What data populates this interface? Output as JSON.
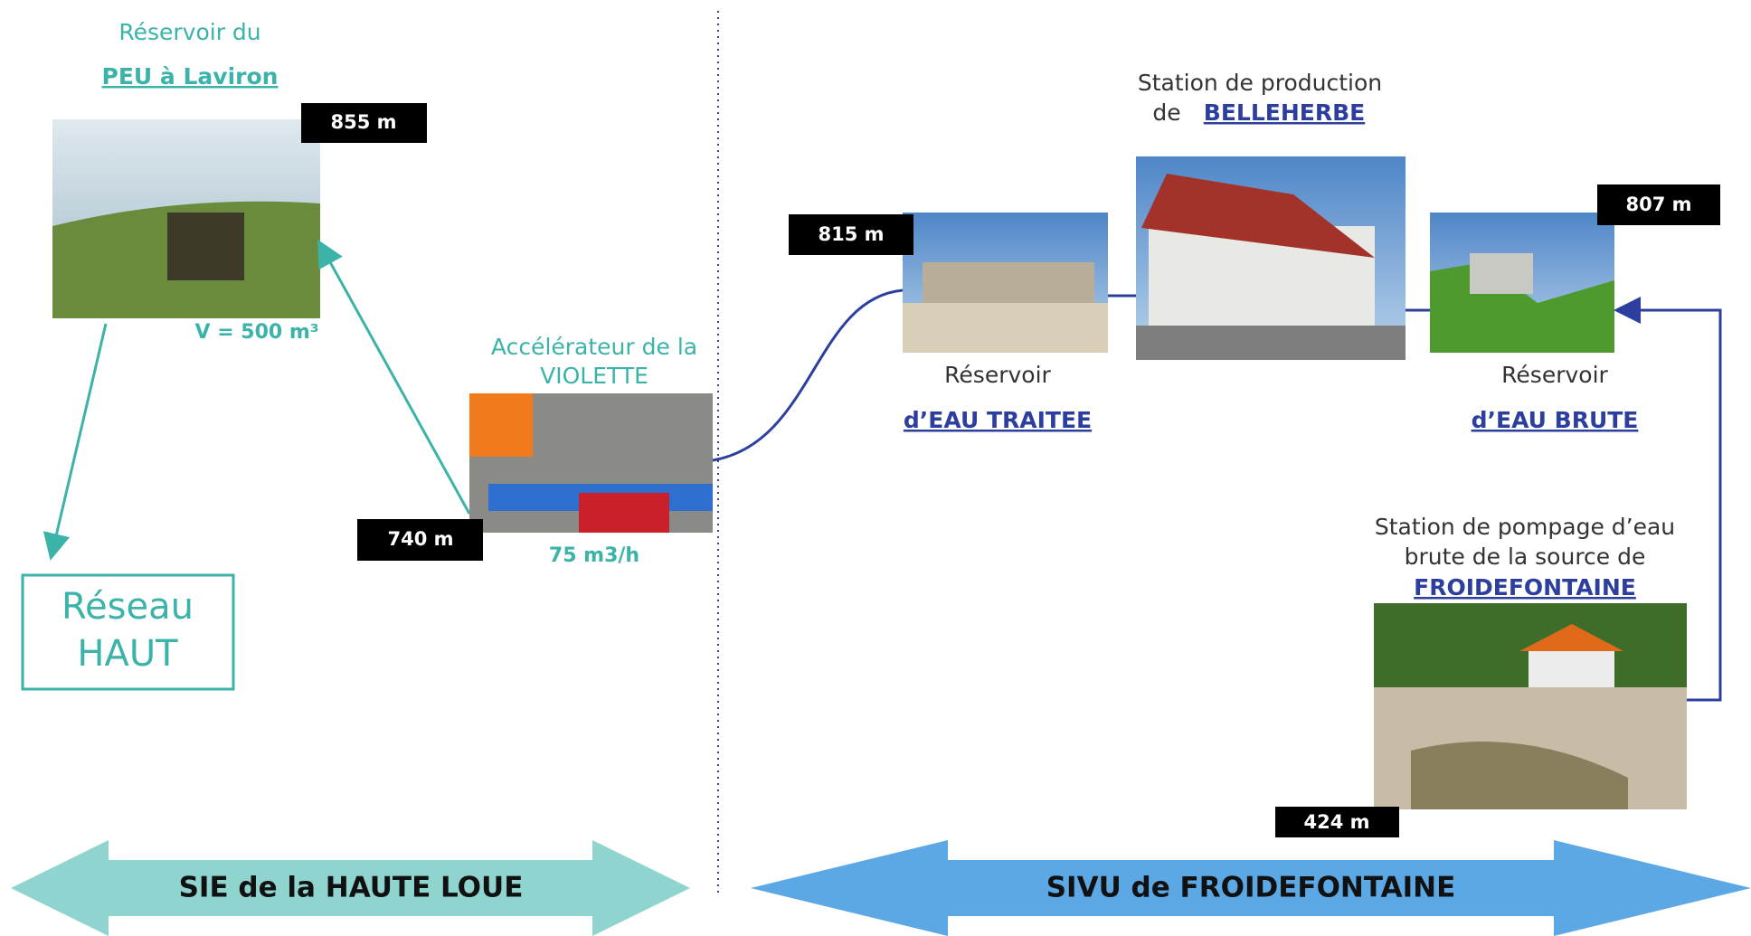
{
  "nodes": [
    {
      "title": "Réservoir du",
      "name": "PEU à Laviron",
      "altitude": "855 m",
      "note": "V = 500 m³"
    },
    {
      "title": "Accélérateur de la",
      "name": "VIOLETTE",
      "altitude": "740 m",
      "note": "75 m3/h"
    },
    {
      "title": "Réservoir",
      "name": "d’EAU TRAITEE",
      "altitude": "815 m"
    },
    {
      "title": "Station de production",
      "title2": "de",
      "name": "BELLEHERBE"
    },
    {
      "title": "Réservoir",
      "name": "d’EAU BRUTE",
      "altitude": "807 m"
    },
    {
      "title": "Station de pompage d’eau",
      "title2": "brute de la source de",
      "name": "FROIDEFONTAINE",
      "altitude": "424 m"
    }
  ],
  "network": {
    "line1": "Réseau",
    "line2": "HAUT"
  },
  "left_group": {
    "label": "SIE de la HAUTE LOUE"
  },
  "right_group": {
    "label": "SIVU de FROIDEFONTAINE"
  }
}
